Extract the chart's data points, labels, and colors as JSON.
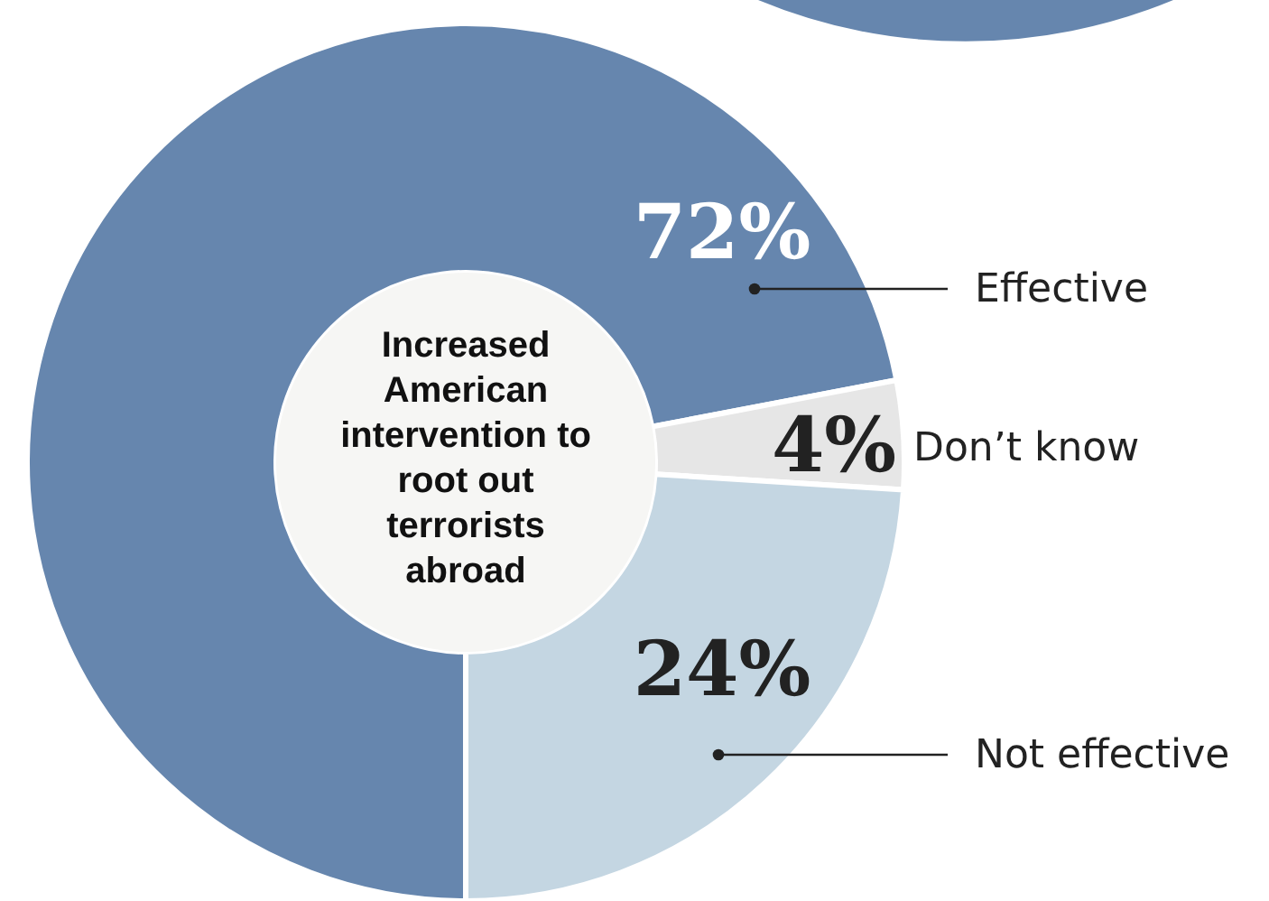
{
  "chart_data": {
    "type": "donut",
    "title": "Increased American intervention to root out terrorists abroad",
    "categories": [
      "Effective",
      "Don’t know",
      "Not effective"
    ],
    "values": [
      72,
      4,
      24
    ],
    "colors": [
      "#6686ae",
      "#e6e6e6",
      "#c4d6e2"
    ],
    "value_labels": [
      "72%",
      "4%",
      "24%"
    ]
  }
}
